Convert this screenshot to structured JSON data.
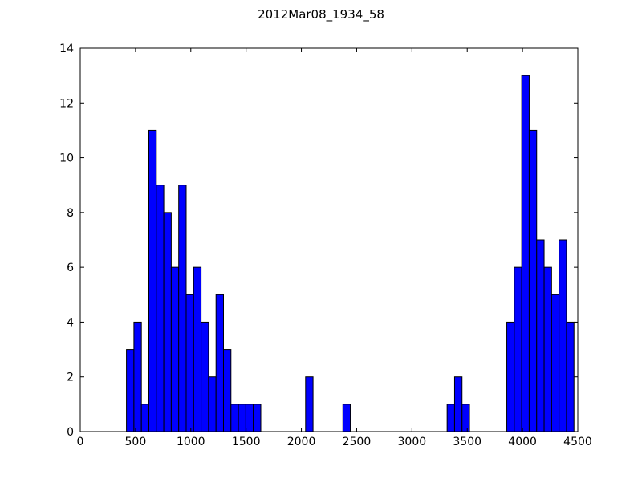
{
  "chart_data": {
    "type": "bar",
    "title": "2012Mar08_1934_58",
    "xlabel": "",
    "ylabel": "",
    "xlim": [
      0,
      4500
    ],
    "ylim": [
      0,
      14
    ],
    "xticks": [
      0,
      500,
      1000,
      1500,
      2000,
      2500,
      3000,
      3500,
      4000,
      4500
    ],
    "yticks": [
      0,
      2,
      4,
      6,
      8,
      10,
      12,
      14
    ],
    "bin_width": 67.5,
    "bar_color": "#0000ff",
    "edge_color": "#000000",
    "grid": false,
    "series": [
      {
        "bin_starts": [
          418,
          485.5,
          553,
          620.5,
          688,
          755.5,
          823,
          890.5,
          958,
          1025.5,
          1093,
          1160.5,
          1228,
          1295.5,
          1363,
          1430.5,
          1498,
          1565.5,
          2038,
          2375.5,
          3318,
          3385.5,
          3453,
          3858,
          3925.5,
          3993,
          4060.5,
          4128,
          4195.5,
          4263,
          4330.5,
          4398
        ],
        "values": [
          3,
          4,
          1,
          11,
          9,
          8,
          6,
          9,
          5,
          6,
          4,
          2,
          5,
          3,
          1,
          1,
          1,
          1,
          2,
          1,
          1,
          2,
          1,
          4,
          6,
          13,
          11,
          7,
          6,
          5,
          7,
          4
        ]
      }
    ]
  }
}
